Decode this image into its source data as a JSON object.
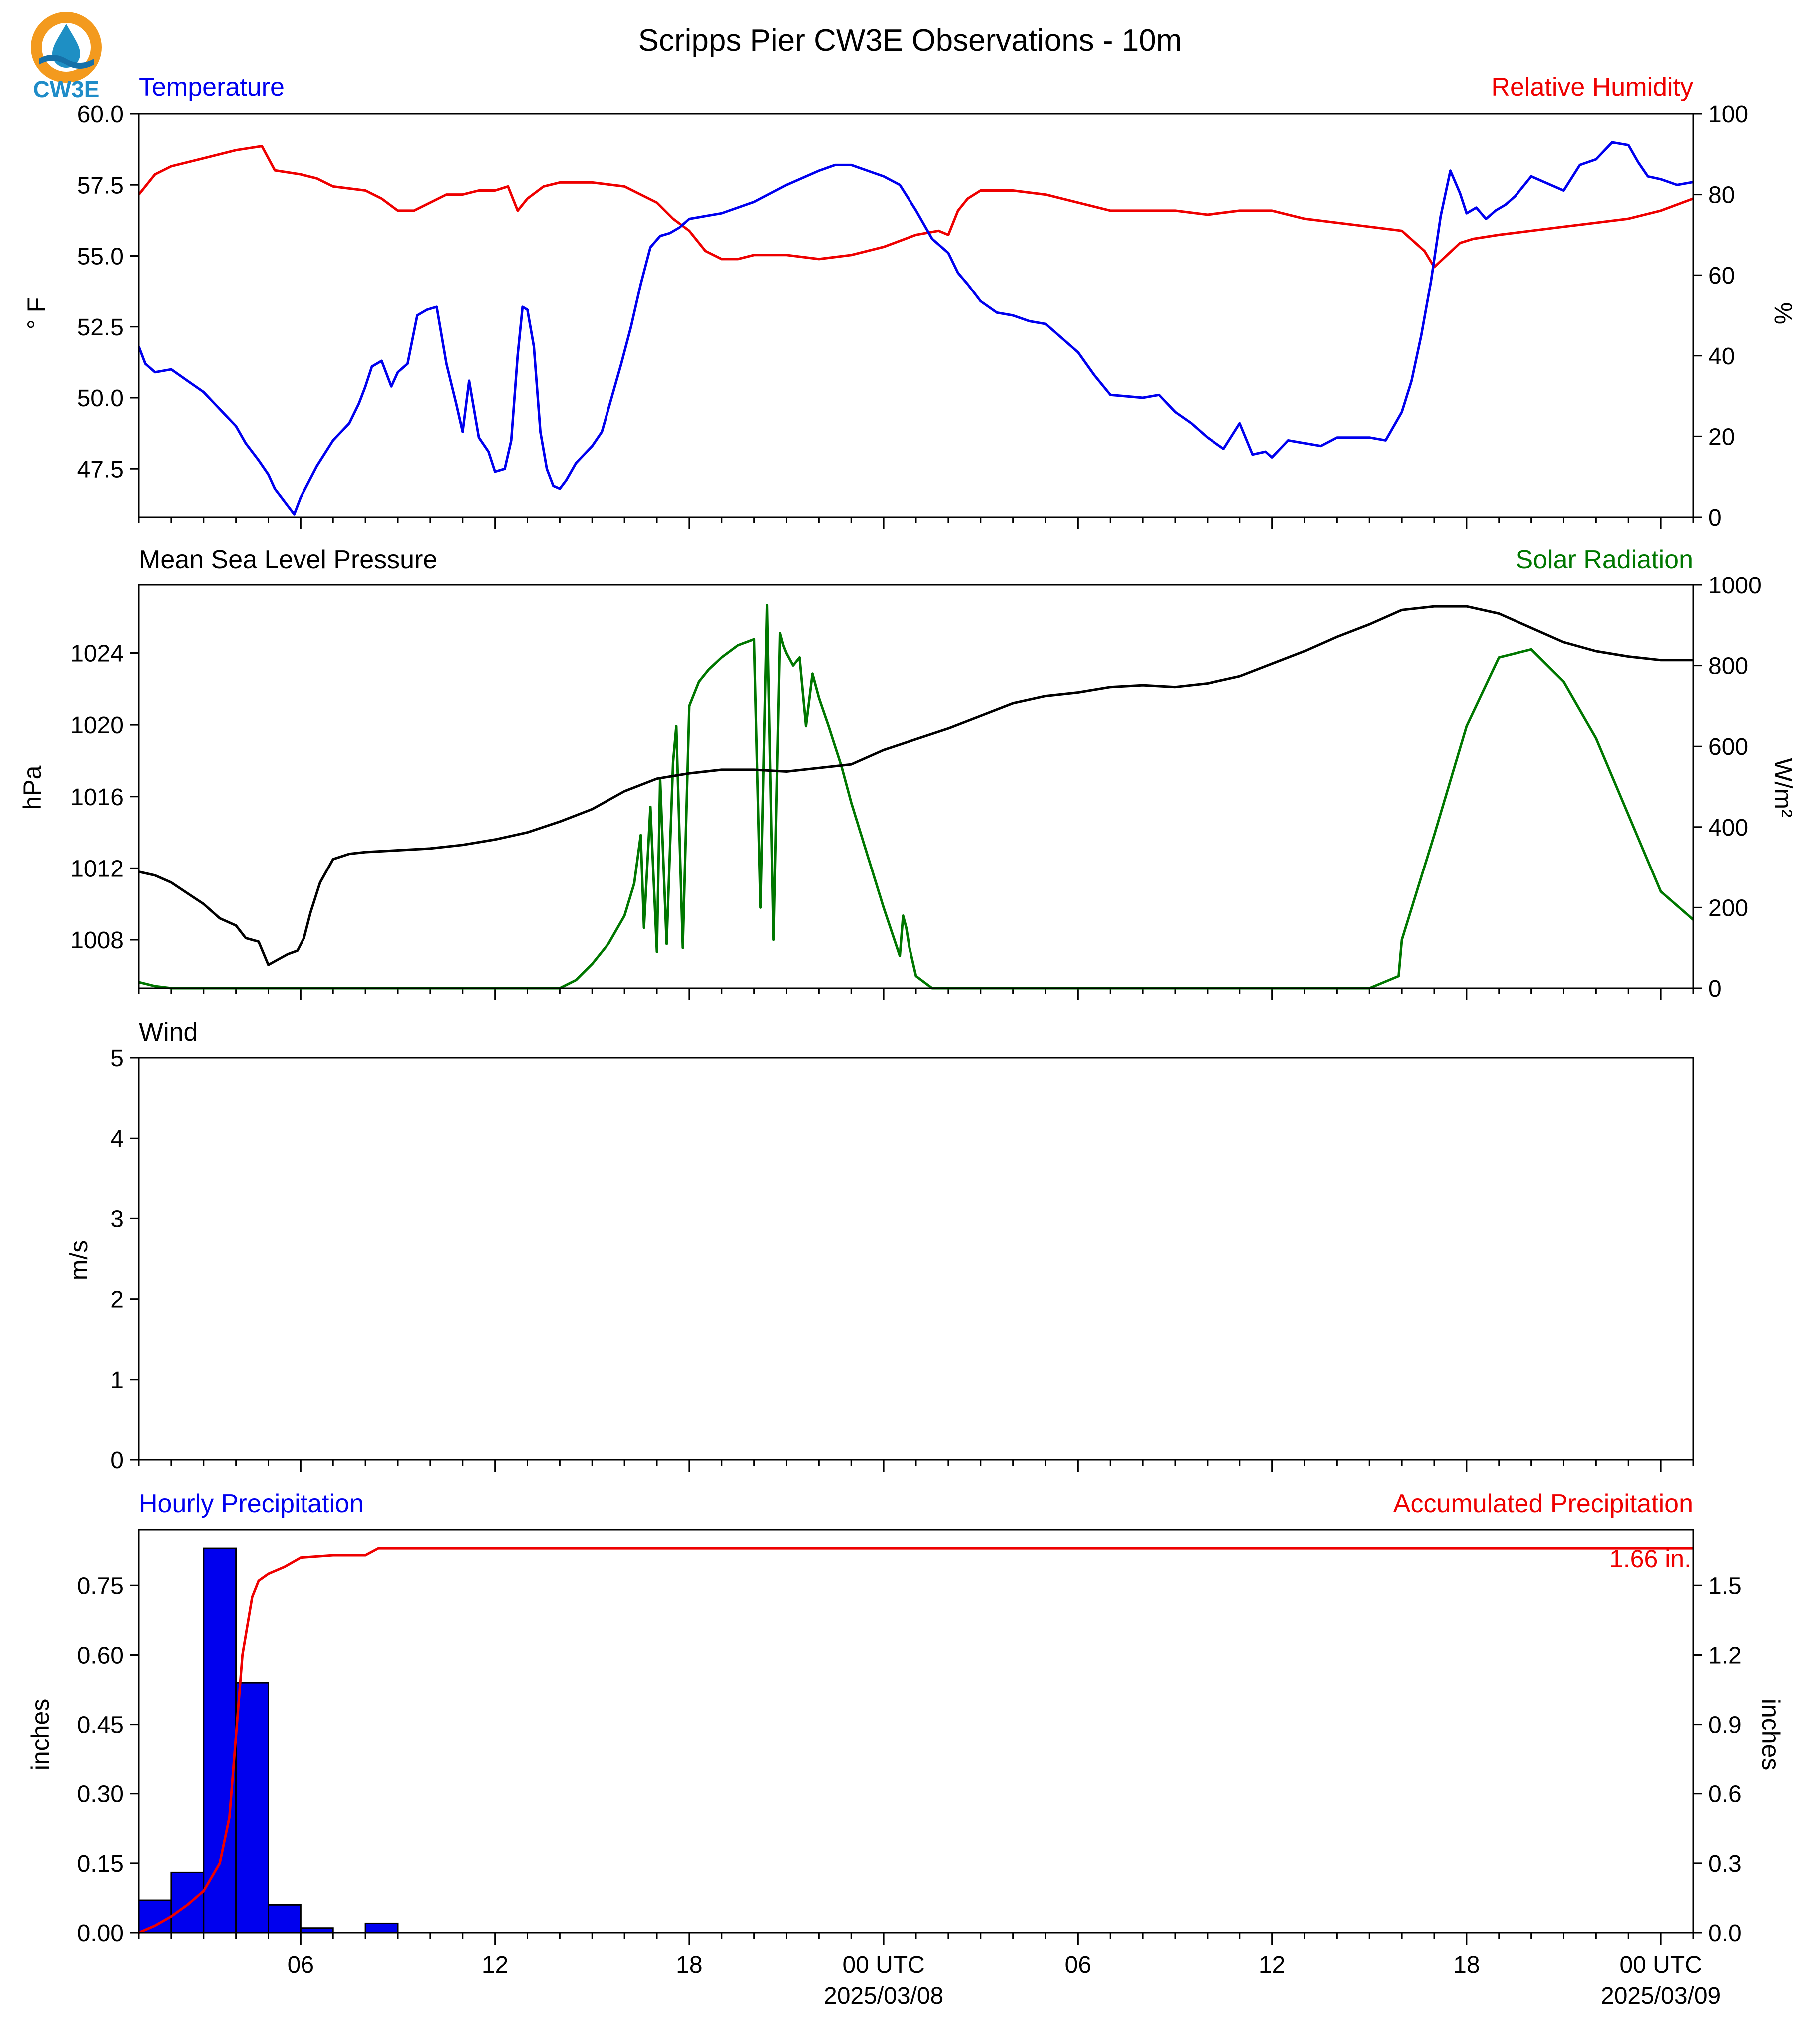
{
  "title": "Scripps Pier CW3E Observations - 10m",
  "logo": {
    "text": "CW3E",
    "colors": {
      "ring": "#f39a1e",
      "drop": "#1e8fc4",
      "water": "#1670a8",
      "text": "#1f8cc8"
    }
  },
  "time_axis": {
    "ticks": [
      {
        "hour": 6,
        "label": "06",
        "date": ""
      },
      {
        "hour": 12,
        "label": "12",
        "date": ""
      },
      {
        "hour": 18,
        "label": "18",
        "date": ""
      },
      {
        "hour": 24,
        "label": "00 UTC",
        "date": "2025/03/08"
      },
      {
        "hour": 30,
        "label": "06",
        "date": ""
      },
      {
        "hour": 36,
        "label": "12",
        "date": ""
      },
      {
        "hour": 42,
        "label": "18",
        "date": ""
      },
      {
        "hour": 48,
        "label": "00 UTC",
        "date": "2025/03/09"
      }
    ]
  },
  "chart_data": [
    {
      "type": "line",
      "left_title": "Temperature",
      "right_title": "Relative Humidity",
      "ylabel_left": "° F",
      "ylabel_right": "%",
      "ylim_left": [
        45.8,
        60.0
      ],
      "ylim_right": [
        0,
        100
      ],
      "yticks_left": [
        "47.5",
        "50.0",
        "52.5",
        "55.0",
        "57.5",
        "60.0"
      ],
      "yticks_right": [
        "0",
        "20",
        "40",
        "60",
        "80",
        "100"
      ],
      "xlim_hours": [
        1,
        49
      ],
      "colors": {
        "left": "#0000ee",
        "right": "#ee0000"
      },
      "series": [
        {
          "name": "Temperature",
          "axis": "left",
          "x": [
            1,
            1.2,
            1.5,
            2,
            2.5,
            3,
            3.5,
            4,
            4.3,
            4.7,
            5,
            5.2,
            5.4,
            5.6,
            5.8,
            6,
            6.5,
            7,
            7.5,
            7.8,
            8,
            8.2,
            8.5,
            8.8,
            9,
            9.3,
            9.6,
            9.9,
            10.2,
            10.5,
            10.8,
            11,
            11.2,
            11.5,
            11.8,
            12,
            12.3,
            12.5,
            12.7,
            12.85,
            13,
            13.2,
            13.4,
            13.6,
            13.8,
            14,
            14.2,
            14.5,
            15,
            15.3,
            15.6,
            15.9,
            16.2,
            16.5,
            16.8,
            17.1,
            17.4,
            17.7,
            18,
            18.5,
            19,
            20,
            21,
            22,
            22.5,
            23,
            23.5,
            24,
            24.5,
            25,
            25.5,
            26,
            26.3,
            26.6,
            27,
            27.5,
            28,
            28.5,
            29,
            29.5,
            30,
            30.5,
            31,
            32,
            32.5,
            33,
            33.5,
            34,
            34.5,
            35,
            35.4,
            35.8,
            36,
            36.5,
            37,
            37.5,
            38,
            38.5,
            39,
            39.5,
            40,
            40.3,
            40.6,
            40.9,
            41.2,
            41.5,
            41.8,
            42,
            42.3,
            42.6,
            42.9,
            43.2,
            43.5,
            44,
            45,
            45.5,
            46,
            46.5,
            47,
            47.3,
            47.6,
            48,
            48.5,
            49
          ],
          "y": [
            51.8,
            51.2,
            50.9,
            51.0,
            50.6,
            50.2,
            49.6,
            49.0,
            48.4,
            47.8,
            47.3,
            46.8,
            46.5,
            46.2,
            45.9,
            46.5,
            47.6,
            48.5,
            49.1,
            49.8,
            50.4,
            51.1,
            51.3,
            50.4,
            50.9,
            51.2,
            52.9,
            53.1,
            53.2,
            51.2,
            49.8,
            48.8,
            50.6,
            48.6,
            48.1,
            47.4,
            47.5,
            48.5,
            51.5,
            53.2,
            53.1,
            51.8,
            48.8,
            47.5,
            46.9,
            46.8,
            47.1,
            47.7,
            48.3,
            48.8,
            50.0,
            51.2,
            52.5,
            54.0,
            55.3,
            55.7,
            55.8,
            56.0,
            56.3,
            56.4,
            56.5,
            56.9,
            57.5,
            58.0,
            58.2,
            58.2,
            58.0,
            57.8,
            57.5,
            56.6,
            55.6,
            55.1,
            54.4,
            54.0,
            53.4,
            53.0,
            52.9,
            52.7,
            52.6,
            52.1,
            51.6,
            50.8,
            50.1,
            50.0,
            50.1,
            49.5,
            49.1,
            48.6,
            48.2,
            49.1,
            48.0,
            48.1,
            47.9,
            48.5,
            48.4,
            48.3,
            48.6,
            48.6,
            48.6,
            48.5,
            49.5,
            50.6,
            52.2,
            54.1,
            56.4,
            58.0,
            57.2,
            56.5,
            56.7,
            56.3,
            56.6,
            56.8,
            57.1,
            57.8,
            57.3,
            58.2,
            58.4,
            59.0,
            58.9,
            58.3,
            57.8,
            57.7,
            57.5,
            57.6
          ]
        },
        {
          "name": "Relative Humidity",
          "axis": "right",
          "x": [
            1,
            1.5,
            2,
            3,
            4,
            4.8,
            5.2,
            6,
            6.5,
            7,
            8,
            8.5,
            9,
            9.5,
            10,
            10.5,
            11,
            11.5,
            12,
            12.4,
            12.7,
            13,
            13.5,
            14,
            15,
            16,
            17,
            17.5,
            18,
            18.5,
            19,
            19.5,
            20,
            21,
            22,
            23,
            24,
            25,
            25.7,
            26,
            26.3,
            26.6,
            27,
            27.5,
            28,
            29,
            30,
            31,
            32,
            33,
            34,
            35,
            36,
            37,
            38,
            39,
            40,
            40.7,
            41,
            41.4,
            41.8,
            42.2,
            43,
            44,
            45,
            46,
            47,
            48,
            49
          ],
          "y": [
            80,
            85,
            87,
            89,
            91,
            92,
            86,
            85,
            84,
            82,
            81,
            79,
            76,
            76,
            78,
            80,
            80,
            81,
            81,
            82,
            76,
            79,
            82,
            83,
            83,
            82,
            78,
            74,
            71,
            66,
            64,
            64,
            65,
            65,
            64,
            65,
            67,
            70,
            71,
            70,
            76,
            79,
            81,
            81,
            81,
            80,
            78,
            76,
            76,
            76,
            75,
            76,
            76,
            74,
            73,
            72,
            71,
            66,
            62,
            65,
            68,
            69,
            70,
            71,
            72,
            73,
            74,
            76,
            79
          ]
        }
      ]
    },
    {
      "type": "line",
      "left_title": "Mean Sea Level Pressure",
      "right_title": "Solar Radiation",
      "ylabel_left": "hPa",
      "ylabel_right": "W/m²",
      "ylim_left": [
        1005.3,
        1027.8
      ],
      "ylim_right": [
        0,
        1000
      ],
      "yticks_left": [
        "1008",
        "1012",
        "1016",
        "1020",
        "1024"
      ],
      "yticks_right": [
        "0",
        "200",
        "400",
        "600",
        "800",
        "1000"
      ],
      "xlim_hours": [
        1,
        49
      ],
      "colors": {
        "left": "#000000",
        "right": "#007700"
      },
      "series": [
        {
          "name": "Mean Sea Level Pressure",
          "axis": "left",
          "x": [
            1,
            1.5,
            2,
            2.5,
            3,
            3.5,
            4,
            4.3,
            4.7,
            5,
            5.3,
            5.6,
            5.9,
            6.1,
            6.3,
            6.6,
            7,
            7.5,
            8,
            9,
            10,
            11,
            12,
            13,
            14,
            15,
            16,
            17,
            18,
            19,
            20,
            21,
            22,
            23,
            24,
            25,
            26,
            27,
            28,
            29,
            30,
            31,
            32,
            33,
            34,
            35,
            36,
            37,
            38,
            39,
            40,
            41,
            42,
            43,
            44,
            45,
            46,
            47,
            48,
            49
          ],
          "y": [
            1011.8,
            1011.6,
            1011.2,
            1010.6,
            1010.0,
            1009.2,
            1008.8,
            1008.1,
            1007.9,
            1006.6,
            1006.9,
            1007.2,
            1007.4,
            1008.1,
            1009.5,
            1011.2,
            1012.5,
            1012.8,
            1012.9,
            1013.0,
            1013.1,
            1013.3,
            1013.6,
            1014.0,
            1014.6,
            1015.3,
            1016.3,
            1017.0,
            1017.3,
            1017.5,
            1017.5,
            1017.4,
            1017.6,
            1017.8,
            1018.6,
            1019.2,
            1019.8,
            1020.5,
            1021.2,
            1021.6,
            1021.8,
            1022.1,
            1022.2,
            1022.1,
            1022.3,
            1022.7,
            1023.4,
            1024.1,
            1024.9,
            1025.6,
            1026.4,
            1026.6,
            1026.6,
            1026.2,
            1025.4,
            1024.6,
            1024.1,
            1023.8,
            1023.6,
            1023.6
          ]
        },
        {
          "name": "Solar Radiation",
          "axis": "right",
          "x": [
            1,
            1.5,
            2,
            5,
            10,
            14,
            14.5,
            15,
            15.5,
            16,
            16.3,
            16.5,
            16.6,
            16.8,
            17,
            17.1,
            17.3,
            17.5,
            17.6,
            17.8,
            18,
            18.3,
            18.6,
            19,
            19.5,
            20,
            20.2,
            20.4,
            20.6,
            20.8,
            20.9,
            21,
            21.2,
            21.4,
            21.6,
            21.8,
            22,
            22.3,
            22.7,
            23,
            23.5,
            24,
            24.5,
            24.6,
            24.7,
            24.8,
            25,
            25.5,
            26,
            27,
            30,
            35,
            39,
            39.9,
            40,
            41,
            42,
            43,
            44,
            45,
            46,
            47,
            48,
            49
          ],
          "y": [
            15,
            5,
            0,
            0,
            0,
            0,
            20,
            60,
            110,
            180,
            260,
            380,
            150,
            450,
            90,
            520,
            110,
            560,
            650,
            100,
            700,
            760,
            790,
            820,
            850,
            865,
            200,
            950,
            120,
            880,
            850,
            830,
            800,
            820,
            650,
            780,
            720,
            650,
            550,
            460,
            330,
            200,
            80,
            180,
            150,
            100,
            30,
            0,
            0,
            0,
            0,
            0,
            0,
            30,
            120,
            380,
            650,
            820,
            840,
            760,
            620,
            430,
            240,
            170
          ]
        }
      ]
    },
    {
      "type": "line",
      "left_title": "Wind",
      "ylabel_left": "m/s",
      "ylim_left": [
        0,
        5
      ],
      "yticks_left": [
        "0",
        "1",
        "2",
        "3",
        "4",
        "5"
      ],
      "xlim_hours": [
        1,
        49
      ],
      "series": []
    },
    {
      "type": "bar",
      "left_title": "Hourly Precipitation",
      "right_title": "Accumulated Precipitation",
      "ylabel_left": "inches",
      "ylabel_right": "inches",
      "ylim_left": [
        0,
        0.87
      ],
      "ylim_right": [
        0,
        1.74
      ],
      "yticks_left": [
        "0.00",
        "0.15",
        "0.30",
        "0.45",
        "0.60",
        "0.75"
      ],
      "yticks_right": [
        "0.0",
        "0.3",
        "0.6",
        "0.9",
        "1.2",
        "1.5"
      ],
      "xlim_hours": [
        1,
        49
      ],
      "bar_color": "#0000ee",
      "line_color": "#ee0000",
      "bars": {
        "start_hour": [
          1,
          2,
          3,
          4,
          5,
          6,
          8
        ],
        "values": [
          0.07,
          0.13,
          0.83,
          0.54,
          0.06,
          0.01,
          0.02
        ]
      },
      "accumulated": {
        "x": [
          1,
          1.5,
          2,
          2.5,
          3,
          3.5,
          3.8,
          4,
          4.2,
          4.5,
          4.7,
          5,
          5.5,
          6,
          7,
          8,
          8.4,
          9,
          12,
          24,
          36,
          49
        ],
        "y": [
          0,
          0.03,
          0.07,
          0.12,
          0.18,
          0.3,
          0.5,
          0.85,
          1.2,
          1.45,
          1.52,
          1.55,
          1.58,
          1.62,
          1.63,
          1.63,
          1.66,
          1.66,
          1.66,
          1.66,
          1.66,
          1.66
        ]
      },
      "annotation": "1.66 in."
    }
  ]
}
